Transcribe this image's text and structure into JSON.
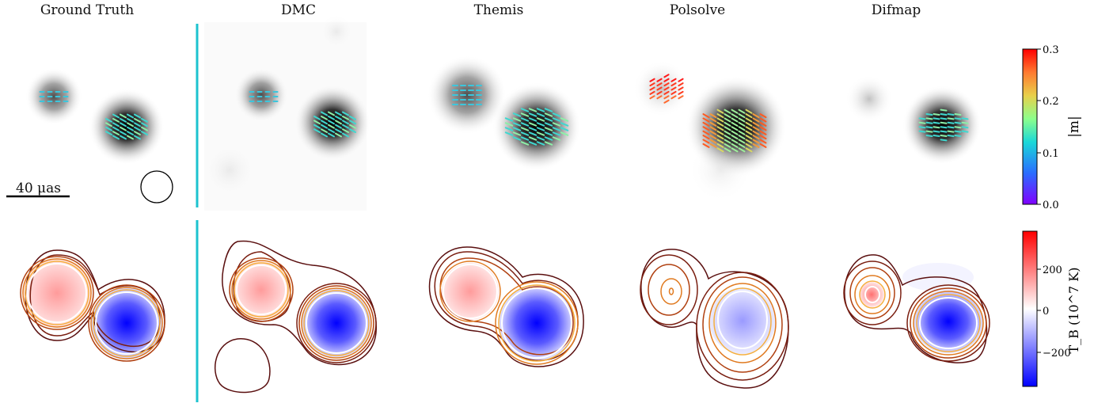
{
  "columns": [
    {
      "title": "Ground Truth"
    },
    {
      "title": "DMC"
    },
    {
      "title": "Themis"
    },
    {
      "title": "Polsolve"
    },
    {
      "title": "Difmap"
    }
  ],
  "scalebar": {
    "label": "40 μas"
  },
  "colorbar_m": {
    "label": "|m|",
    "ticks": [
      "0.3",
      "0.2",
      "0.1",
      "0.0"
    ],
    "range": [
      0.0,
      0.3
    ],
    "colormap": "rainbow"
  },
  "colorbar_tb": {
    "label": "T_B (10^7 K)",
    "ticks": [
      "200",
      "0",
      "−200"
    ],
    "range": [
      -380,
      380
    ],
    "colormap": "bwr"
  },
  "colors": {
    "divider": "#1cc3cf",
    "contour_dark": "#5a0f0f",
    "contour_light": "#f0a020"
  }
}
